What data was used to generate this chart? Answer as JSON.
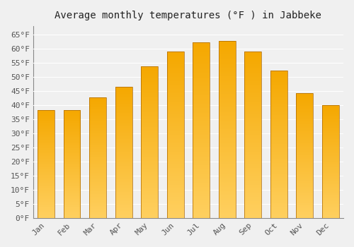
{
  "title": "Average monthly temperatures (°F ) in Jabbeke",
  "months": [
    "Jan",
    "Feb",
    "Mar",
    "Apr",
    "May",
    "Jun",
    "Jul",
    "Aug",
    "Sep",
    "Oct",
    "Nov",
    "Dec"
  ],
  "values": [
    38.3,
    38.3,
    42.8,
    46.4,
    53.8,
    59.0,
    62.2,
    62.8,
    59.0,
    52.2,
    44.2,
    39.9
  ],
  "ylim": [
    0,
    68
  ],
  "yticks": [
    0,
    5,
    10,
    15,
    20,
    25,
    30,
    35,
    40,
    45,
    50,
    55,
    60,
    65
  ],
  "bar_color_top": "#F5A800",
  "bar_color_bottom": "#FFD060",
  "background_color": "#F0F0F0",
  "grid_color": "#FFFFFF",
  "title_fontsize": 10,
  "tick_fontsize": 8,
  "font_family": "monospace"
}
